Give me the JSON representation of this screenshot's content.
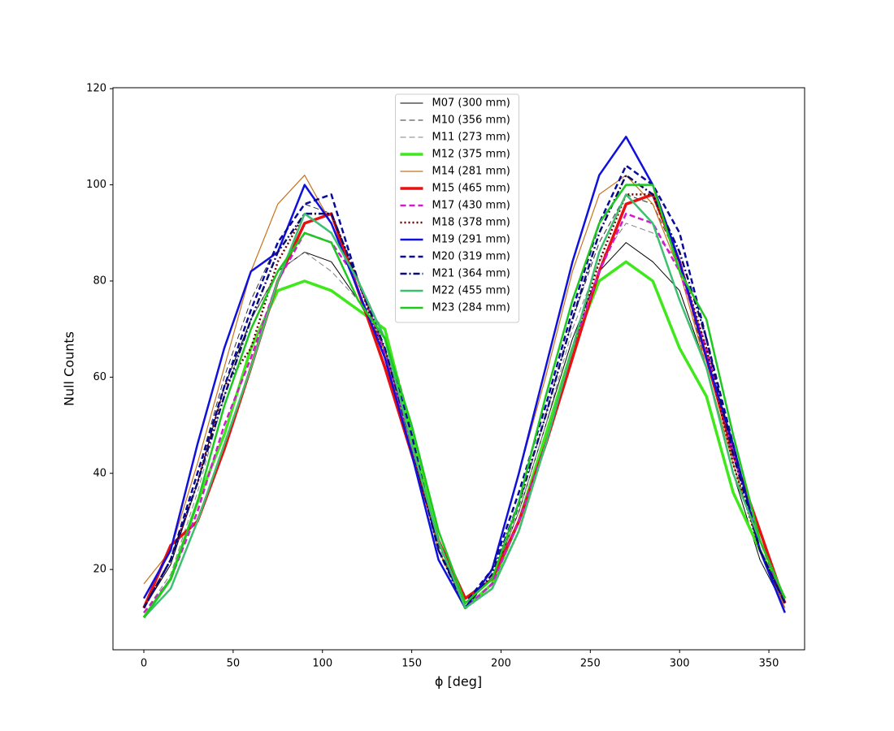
{
  "chart_data": {
    "type": "line",
    "xlabel": "ϕ [deg]",
    "ylabel": "Null Counts",
    "x": [
      0,
      15,
      30,
      45,
      60,
      75,
      90,
      105,
      120,
      135,
      150,
      165,
      180,
      195,
      210,
      225,
      240,
      255,
      270,
      285,
      300,
      315,
      330,
      345,
      359
    ],
    "xlim": [
      -17.3,
      370
    ],
    "ylim": [
      3.3,
      120.2
    ],
    "xticks": [
      0,
      50,
      100,
      150,
      200,
      250,
      300,
      350
    ],
    "yticks": [
      20,
      40,
      60,
      80,
      100,
      120
    ],
    "grid": false,
    "legend": "upper center",
    "series": [
      {
        "name": "M07 (300 mm)",
        "color": "#000000",
        "linestyle": "solid",
        "linewidth": 1,
        "values": [
          12,
          21,
          38,
          58,
          72,
          82,
          86,
          84,
          76,
          66,
          46,
          24,
          13,
          18,
          32,
          50,
          68,
          82,
          88,
          84,
          78,
          62,
          40,
          22,
          12
        ]
      },
      {
        "name": "M10 (356 mm)",
        "color": "#333333",
        "linestyle": "dashed",
        "linewidth": 1,
        "values": [
          12,
          22,
          40,
          60,
          76,
          88,
          96,
          94,
          80,
          66,
          46,
          25,
          13,
          18,
          33,
          52,
          72,
          88,
          98,
          96,
          84,
          62,
          40,
          22,
          12
        ]
      },
      {
        "name": "M11 (273 mm)",
        "color": "#808080",
        "linestyle": "dashed",
        "linewidth": 1,
        "values": [
          11,
          19,
          36,
          56,
          72,
          82,
          86,
          82,
          76,
          70,
          50,
          26,
          13,
          18,
          32,
          50,
          70,
          84,
          92,
          90,
          84,
          66,
          42,
          24,
          12
        ]
      },
      {
        "name": "M12 (375 mm)",
        "color": "#3ee81a",
        "linestyle": "solid",
        "linewidth": 3.5,
        "values": [
          10,
          18,
          34,
          48,
          66,
          78,
          80,
          78,
          74,
          70,
          48,
          26,
          12,
          17,
          30,
          48,
          66,
          80,
          84,
          80,
          66,
          56,
          36,
          24,
          14
        ]
      },
      {
        "name": "M14 (281 mm)",
        "color": "#c8731e",
        "linestyle": "solid",
        "linewidth": 1.2,
        "values": [
          17,
          24,
          42,
          62,
          82,
          96,
          102,
          92,
          80,
          65,
          45,
          24,
          12,
          20,
          40,
          60,
          82,
          98,
          102,
          96,
          82,
          62,
          42,
          24,
          12
        ]
      },
      {
        "name": "M15 (465 mm)",
        "color": "#e81010",
        "linestyle": "solid",
        "linewidth": 3.5,
        "values": [
          12,
          25,
          30,
          45,
          62,
          80,
          92,
          94,
          78,
          62,
          44,
          26,
          14,
          18,
          30,
          46,
          64,
          82,
          96,
          98,
          84,
          64,
          44,
          28,
          13
        ]
      },
      {
        "name": "M17 (430 mm)",
        "color": "#d21ad2",
        "linestyle": "dashed",
        "linewidth": 2.5,
        "values": [
          11,
          18,
          32,
          50,
          64,
          80,
          90,
          88,
          80,
          65,
          46,
          26,
          12,
          17,
          30,
          46,
          66,
          82,
          94,
          92,
          82,
          66,
          44,
          26,
          13
        ]
      },
      {
        "name": "M18 (378 mm)",
        "color": "#6b0000",
        "linestyle": "dotted",
        "linewidth": 2.5,
        "values": [
          12,
          22,
          38,
          58,
          66,
          84,
          94,
          94,
          80,
          64,
          44,
          26,
          12,
          16,
          28,
          46,
          66,
          84,
          98,
          98,
          84,
          66,
          42,
          24,
          13
        ]
      },
      {
        "name": "M19 (291 mm)",
        "color": "#1010dd",
        "linestyle": "solid",
        "linewidth": 2.5,
        "values": [
          14,
          24,
          46,
          66,
          82,
          86,
          100,
          92,
          78,
          64,
          44,
          22,
          12,
          20,
          40,
          62,
          84,
          102,
          110,
          100,
          84,
          64,
          46,
          24,
          11
        ]
      },
      {
        "name": "M20 (319 mm)",
        "color": "#0a0a9a",
        "linestyle": "dashed",
        "linewidth": 2.5,
        "values": [
          12,
          22,
          40,
          58,
          74,
          88,
          96,
          98,
          80,
          68,
          48,
          24,
          13,
          20,
          36,
          54,
          74,
          92,
          104,
          100,
          90,
          68,
          46,
          24,
          13
        ]
      },
      {
        "name": "M21 (364 mm)",
        "color": "#0b0b70",
        "linestyle": "dashdot",
        "linewidth": 2.5,
        "values": [
          12,
          22,
          38,
          56,
          72,
          86,
          94,
          94,
          80,
          66,
          46,
          24,
          12,
          19,
          34,
          52,
          72,
          90,
          102,
          98,
          86,
          68,
          44,
          24,
          13
        ]
      },
      {
        "name": "M22 (455 mm)",
        "color": "#3cc070",
        "linestyle": "solid",
        "linewidth": 2.5,
        "values": [
          10,
          16,
          30,
          46,
          62,
          80,
          94,
          90,
          80,
          68,
          46,
          26,
          12,
          16,
          28,
          46,
          66,
          86,
          98,
          92,
          76,
          62,
          40,
          26,
          14
        ]
      },
      {
        "name": "M23 (284 mm)",
        "color": "#1ec81e",
        "linestyle": "solid",
        "linewidth": 2.5,
        "values": [
          10,
          18,
          34,
          54,
          70,
          82,
          90,
          88,
          76,
          68,
          50,
          28,
          13,
          18,
          34,
          56,
          76,
          92,
          100,
          100,
          82,
          72,
          48,
          26,
          14
        ]
      }
    ]
  }
}
